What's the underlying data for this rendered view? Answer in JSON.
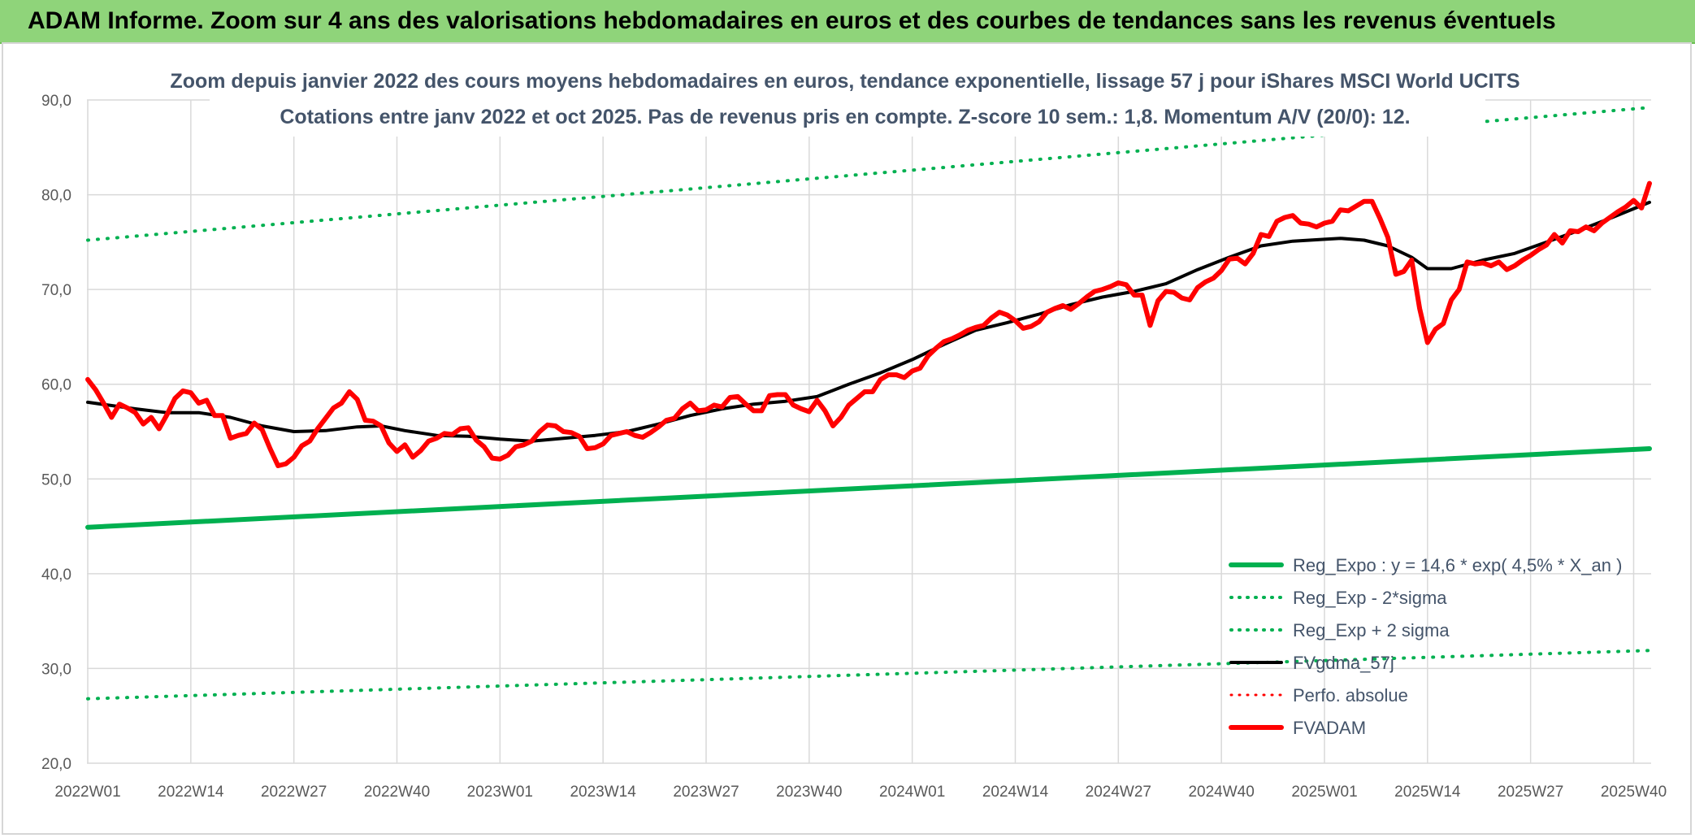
{
  "banner": {
    "title": "ADAM Informe. Zoom sur 4 ans des valorisations hebdomadaires en euros et des courbes de tendances sans les revenus éventuels"
  },
  "chart_data": {
    "type": "line",
    "title": "Zoom depuis janvier 2022 des cours moyens hebdomadaires en euros, tendance exponentielle, lissage 57 j pour iShares MSCI World UCITS",
    "subtitle": "Cotations entre janv 2022 et oct 2025. Pas de revenus pris en compte. Z-score 10 sem.: 1,8. Momentum A/V (20/0): 12.",
    "xlabel": "",
    "ylabel": "",
    "ylim": [
      20,
      90
    ],
    "yticks": [
      20,
      30,
      40,
      50,
      60,
      70,
      80,
      90
    ],
    "ytick_labels": [
      "20,0",
      "30,0",
      "40,0",
      "50,0",
      "60,0",
      "70,0",
      "80,0",
      "90,0"
    ],
    "x_range": [
      0,
      197
    ],
    "x_tick_positions": [
      0,
      13,
      26,
      39,
      52,
      65,
      78,
      91,
      104,
      117,
      130,
      143,
      156,
      169,
      182,
      195
    ],
    "x_tick_labels": [
      "2022W01",
      "2022W14",
      "2022W27",
      "2022W40",
      "2023W01",
      "2023W14",
      "2023W27",
      "2023W40",
      "2024W01",
      "2024W14",
      "2024W27",
      "2024W40",
      "2025W01",
      "2025W14",
      "2025W27",
      "2025W40"
    ],
    "grid": true,
    "legend_position": "bottom-right",
    "series": [
      {
        "name": "Reg_Expo : y = 14,6 * exp( 4,5% *  X_an )",
        "style": "solid",
        "color": "#00b050",
        "width": 6,
        "points": [
          [
            0,
            44.9
          ],
          [
            197,
            53.2
          ]
        ]
      },
      {
        "name": "Reg_Exp - 2*sigma",
        "style": "dotted",
        "color": "#00b050",
        "width": 4,
        "points": [
          [
            0,
            26.8
          ],
          [
            197,
            31.9
          ]
        ]
      },
      {
        "name": "Reg_Exp + 2 sigma",
        "style": "dotted",
        "color": "#00b050",
        "width": 4,
        "points": [
          [
            0,
            75.2
          ],
          [
            197,
            89.2
          ]
        ]
      },
      {
        "name": "FVgdma_57j",
        "style": "solid",
        "color": "#000000",
        "width": 4,
        "points": [
          [
            0,
            58.1
          ],
          [
            6,
            57.4
          ],
          [
            10,
            57.0
          ],
          [
            14,
            57.0
          ],
          [
            18,
            56.5
          ],
          [
            22,
            55.6
          ],
          [
            26,
            55.0
          ],
          [
            30,
            55.1
          ],
          [
            34,
            55.5
          ],
          [
            37,
            55.6
          ],
          [
            40,
            55.1
          ],
          [
            44,
            54.6
          ],
          [
            48,
            54.5
          ],
          [
            52,
            54.2
          ],
          [
            56,
            54.0
          ],
          [
            60,
            54.3
          ],
          [
            64,
            54.6
          ],
          [
            68,
            55.0
          ],
          [
            72,
            55.8
          ],
          [
            76,
            56.7
          ],
          [
            80,
            57.4
          ],
          [
            84,
            57.9
          ],
          [
            88,
            58.2
          ],
          [
            92,
            58.7
          ],
          [
            96,
            60.0
          ],
          [
            100,
            61.2
          ],
          [
            104,
            62.6
          ],
          [
            108,
            64.2
          ],
          [
            112,
            65.7
          ],
          [
            116,
            66.5
          ],
          [
            120,
            67.4
          ],
          [
            124,
            68.4
          ],
          [
            128,
            69.2
          ],
          [
            132,
            69.8
          ],
          [
            136,
            70.6
          ],
          [
            140,
            72.1
          ],
          [
            144,
            73.4
          ],
          [
            148,
            74.6
          ],
          [
            152,
            75.1
          ],
          [
            156,
            75.3
          ],
          [
            158,
            75.4
          ],
          [
            161,
            75.2
          ],
          [
            164,
            74.6
          ],
          [
            167,
            73.4
          ],
          [
            169,
            72.2
          ],
          [
            172,
            72.2
          ],
          [
            176,
            73.1
          ],
          [
            180,
            73.8
          ],
          [
            184,
            75.0
          ],
          [
            188,
            76.2
          ],
          [
            192,
            77.5
          ],
          [
            197,
            79.2
          ]
        ]
      },
      {
        "name": "Perfo. absolue",
        "style": "dotted",
        "color": "#ff0000",
        "width": 3,
        "points": []
      },
      {
        "name": "FVADAM",
        "style": "solid",
        "color": "#ff0000",
        "width": 6,
        "points": [
          [
            0,
            60.5
          ],
          [
            1,
            59.4
          ],
          [
            2,
            58.0
          ],
          [
            3,
            56.5
          ],
          [
            4,
            57.9
          ],
          [
            5,
            57.5
          ],
          [
            6,
            57.0
          ],
          [
            7,
            55.8
          ],
          [
            8,
            56.5
          ],
          [
            9,
            55.3
          ],
          [
            10,
            56.8
          ],
          [
            11,
            58.5
          ],
          [
            12,
            59.3
          ],
          [
            13,
            59.1
          ],
          [
            14,
            58.0
          ],
          [
            15,
            58.3
          ],
          [
            16,
            56.7
          ],
          [
            17,
            56.7
          ],
          [
            18,
            54.3
          ],
          [
            19,
            54.6
          ],
          [
            20,
            54.8
          ],
          [
            21,
            55.9
          ],
          [
            22,
            55.2
          ],
          [
            23,
            53.2
          ],
          [
            24,
            51.4
          ],
          [
            25,
            51.6
          ],
          [
            26,
            52.3
          ],
          [
            27,
            53.5
          ],
          [
            28,
            54.0
          ],
          [
            29,
            55.3
          ],
          [
            30,
            56.4
          ],
          [
            31,
            57.5
          ],
          [
            32,
            58.0
          ],
          [
            33,
            59.2
          ],
          [
            34,
            58.4
          ],
          [
            35,
            56.2
          ],
          [
            36,
            56.1
          ],
          [
            37,
            55.6
          ],
          [
            38,
            53.8
          ],
          [
            39,
            52.9
          ],
          [
            40,
            53.6
          ],
          [
            41,
            52.3
          ],
          [
            42,
            53.0
          ],
          [
            43,
            54.0
          ],
          [
            44,
            54.3
          ],
          [
            45,
            54.8
          ],
          [
            46,
            54.7
          ],
          [
            47,
            55.3
          ],
          [
            48,
            55.4
          ],
          [
            49,
            54.1
          ],
          [
            50,
            53.4
          ],
          [
            51,
            52.2
          ],
          [
            52,
            52.1
          ],
          [
            53,
            52.5
          ],
          [
            54,
            53.4
          ],
          [
            55,
            53.6
          ],
          [
            56,
            54.0
          ],
          [
            57,
            55.0
          ],
          [
            58,
            55.7
          ],
          [
            59,
            55.6
          ],
          [
            60,
            55.0
          ],
          [
            61,
            54.9
          ],
          [
            62,
            54.5
          ],
          [
            63,
            53.2
          ],
          [
            64,
            53.3
          ],
          [
            65,
            53.7
          ],
          [
            66,
            54.6
          ],
          [
            67,
            54.8
          ],
          [
            68,
            55.0
          ],
          [
            69,
            54.6
          ],
          [
            70,
            54.4
          ],
          [
            71,
            54.9
          ],
          [
            72,
            55.5
          ],
          [
            73,
            56.2
          ],
          [
            74,
            56.4
          ],
          [
            75,
            57.4
          ],
          [
            76,
            58.0
          ],
          [
            77,
            57.2
          ],
          [
            78,
            57.3
          ],
          [
            79,
            57.8
          ],
          [
            80,
            57.6
          ],
          [
            81,
            58.6
          ],
          [
            82,
            58.7
          ],
          [
            83,
            57.9
          ],
          [
            84,
            57.2
          ],
          [
            85,
            57.2
          ],
          [
            86,
            58.8
          ],
          [
            87,
            58.9
          ],
          [
            88,
            58.9
          ],
          [
            89,
            57.8
          ],
          [
            90,
            57.4
          ],
          [
            91,
            57.1
          ],
          [
            92,
            58.3
          ],
          [
            93,
            57.2
          ],
          [
            94,
            55.6
          ],
          [
            95,
            56.5
          ],
          [
            96,
            57.8
          ],
          [
            97,
            58.5
          ],
          [
            98,
            59.2
          ],
          [
            99,
            59.2
          ],
          [
            100,
            60.5
          ],
          [
            101,
            61.0
          ],
          [
            102,
            61.0
          ],
          [
            103,
            60.7
          ],
          [
            104,
            61.4
          ],
          [
            105,
            61.7
          ],
          [
            106,
            63.0
          ],
          [
            107,
            63.8
          ],
          [
            108,
            64.5
          ],
          [
            109,
            64.8
          ],
          [
            110,
            65.2
          ],
          [
            111,
            65.7
          ],
          [
            112,
            66.0
          ],
          [
            113,
            66.2
          ],
          [
            114,
            67.0
          ],
          [
            115,
            67.6
          ],
          [
            116,
            67.3
          ],
          [
            117,
            66.7
          ],
          [
            118,
            65.9
          ],
          [
            119,
            66.1
          ],
          [
            120,
            66.6
          ],
          [
            121,
            67.6
          ],
          [
            122,
            68.0
          ],
          [
            123,
            68.3
          ],
          [
            124,
            67.9
          ],
          [
            125,
            68.5
          ],
          [
            126,
            69.2
          ],
          [
            127,
            69.8
          ],
          [
            128,
            70.0
          ],
          [
            129,
            70.3
          ],
          [
            130,
            70.7
          ],
          [
            131,
            70.5
          ],
          [
            132,
            69.4
          ],
          [
            133,
            69.4
          ],
          [
            134,
            66.2
          ],
          [
            135,
            68.8
          ],
          [
            136,
            69.8
          ],
          [
            137,
            69.7
          ],
          [
            138,
            69.1
          ],
          [
            139,
            68.9
          ],
          [
            140,
            70.2
          ],
          [
            141,
            70.8
          ],
          [
            142,
            71.2
          ],
          [
            143,
            72.0
          ],
          [
            144,
            73.2
          ],
          [
            145,
            73.3
          ],
          [
            146,
            72.7
          ],
          [
            147,
            73.8
          ],
          [
            148,
            75.8
          ],
          [
            149,
            75.6
          ],
          [
            150,
            77.2
          ],
          [
            151,
            77.6
          ],
          [
            152,
            77.8
          ],
          [
            153,
            77.0
          ],
          [
            154,
            76.9
          ],
          [
            155,
            76.6
          ],
          [
            156,
            77.0
          ],
          [
            157,
            77.2
          ],
          [
            158,
            78.4
          ],
          [
            159,
            78.3
          ],
          [
            160,
            78.8
          ],
          [
            161,
            79.3
          ],
          [
            162,
            79.3
          ],
          [
            163,
            77.5
          ],
          [
            164,
            75.5
          ],
          [
            165,
            71.6
          ],
          [
            166,
            71.9
          ],
          [
            167,
            73.1
          ],
          [
            168,
            68.0
          ],
          [
            169,
            64.4
          ],
          [
            170,
            65.8
          ],
          [
            171,
            66.4
          ],
          [
            172,
            68.9
          ],
          [
            173,
            70.0
          ],
          [
            174,
            72.9
          ],
          [
            175,
            72.7
          ],
          [
            176,
            72.8
          ],
          [
            177,
            72.5
          ],
          [
            178,
            72.9
          ],
          [
            179,
            72.1
          ],
          [
            180,
            72.5
          ],
          [
            181,
            73.1
          ],
          [
            182,
            73.6
          ],
          [
            183,
            74.2
          ],
          [
            184,
            74.7
          ],
          [
            185,
            75.8
          ],
          [
            186,
            74.9
          ],
          [
            187,
            76.2
          ],
          [
            188,
            76.1
          ],
          [
            189,
            76.6
          ],
          [
            190,
            76.2
          ],
          [
            191,
            77.0
          ],
          [
            192,
            77.6
          ],
          [
            193,
            78.2
          ],
          [
            194,
            78.7
          ],
          [
            195,
            79.4
          ],
          [
            196,
            78.6
          ],
          [
            197,
            81.2
          ]
        ]
      }
    ]
  }
}
